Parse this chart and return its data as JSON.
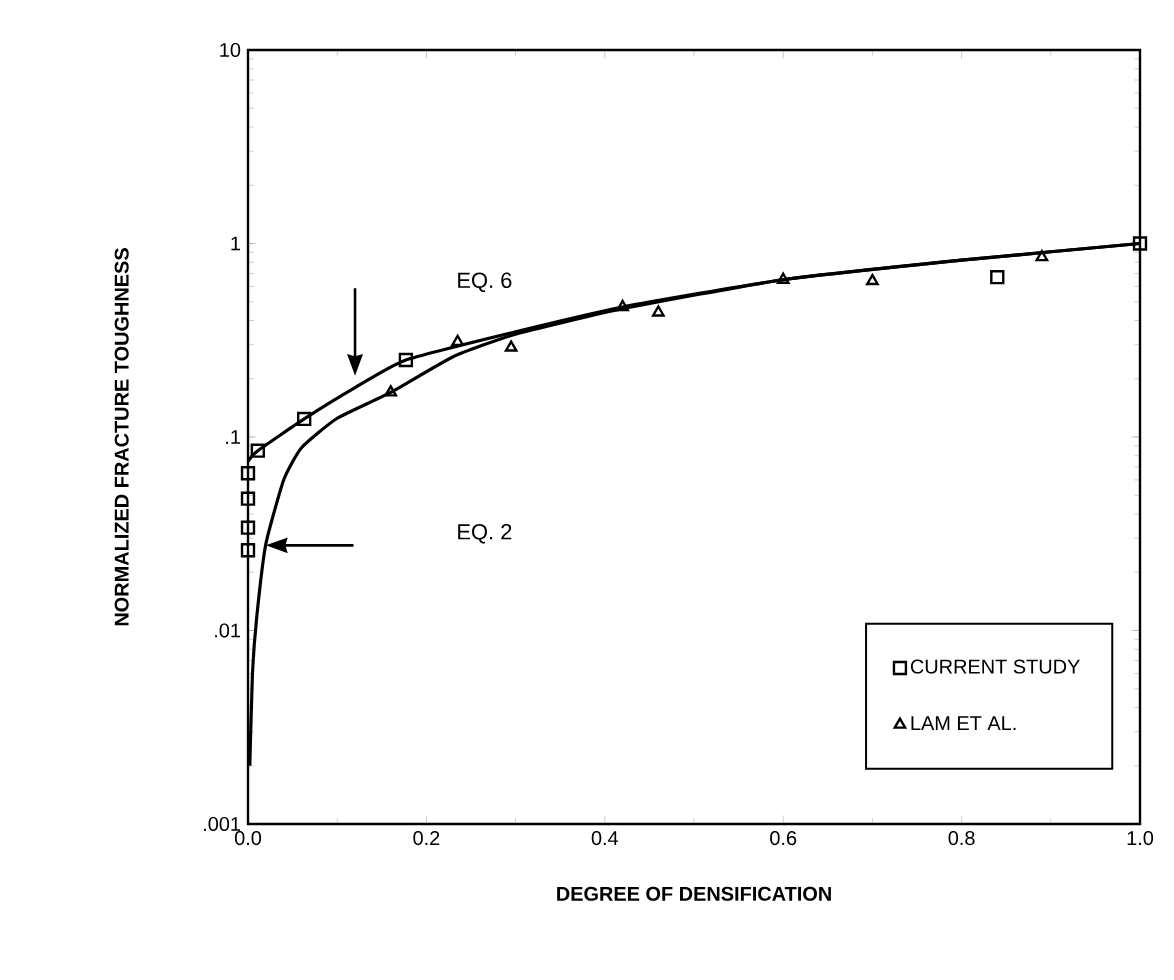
{
  "chart_data": {
    "type": "scatter",
    "xlabel": "DEGREE OF DENSIFICATION",
    "ylabel": "NORMALIZED FRACTURE TOUGHNESS",
    "log": "y",
    "xlim": [
      0,
      1
    ],
    "ylim": [
      0.001,
      10
    ],
    "xticks": [
      {
        "value": 0,
        "label": "0.0"
      },
      {
        "value": 0.2,
        "label": "0.2"
      },
      {
        "value": 0.4,
        "label": "0.4"
      },
      {
        "value": 0.6,
        "label": "0.6"
      },
      {
        "value": 0.8,
        "label": "0.8"
      },
      {
        "value": 1,
        "label": "1.0"
      }
    ],
    "yticks": [
      {
        "value": 0.001,
        "label": ".001"
      },
      {
        "value": 0.01,
        "label": ".01"
      },
      {
        "value": 0.1,
        "label": ".1"
      },
      {
        "value": 1,
        "label": "1"
      },
      {
        "value": 10,
        "label": "10"
      }
    ],
    "legend": "bottom right",
    "series": [
      {
        "name": "CURRENT STUDY",
        "marker": "square",
        "color": "#000000",
        "x": [
          0,
          0,
          0,
          0,
          0.011,
          0.063,
          0.177,
          0.84,
          1.0
        ],
        "values": [
          0.065,
          0.048,
          0.034,
          0.026,
          0.085,
          0.124,
          0.25,
          0.67,
          1.0
        ]
      },
      {
        "name": "LAM ET AL.",
        "marker": "triangle",
        "color": "#000000",
        "x": [
          0.16,
          0.235,
          0.295,
          0.42,
          0.46,
          0.6,
          0.7,
          0.89
        ],
        "values": [
          0.17,
          0.31,
          0.29,
          0.47,
          0.44,
          0.65,
          0.64,
          0.85
        ]
      },
      {
        "type": "line",
        "marker": "none",
        "color": "#000000",
        "x": [
          0,
          0.011,
          0.063,
          0.12,
          0.177,
          0.3,
          0.42,
          0.6,
          0.8,
          1.0
        ],
        "values": [
          0.075,
          0.085,
          0.124,
          0.18,
          0.25,
          0.35,
          0.47,
          0.65,
          0.82,
          1.0
        ]
      },
      {
        "type": "line",
        "marker": "none",
        "color": "#000000",
        "x": [
          0.002,
          0.005,
          0.01,
          0.02,
          0.04,
          0.06,
          0.1,
          0.16,
          0.23,
          0.3,
          0.42,
          0.6,
          0.8,
          1.0
        ],
        "values": [
          0.002,
          0.006,
          0.012,
          0.028,
          0.06,
          0.088,
          0.125,
          0.17,
          0.26,
          0.34,
          0.46,
          0.65,
          0.82,
          1.0
        ]
      }
    ],
    "annotations": [
      "EQ. 6",
      "EQ. 2"
    ]
  }
}
